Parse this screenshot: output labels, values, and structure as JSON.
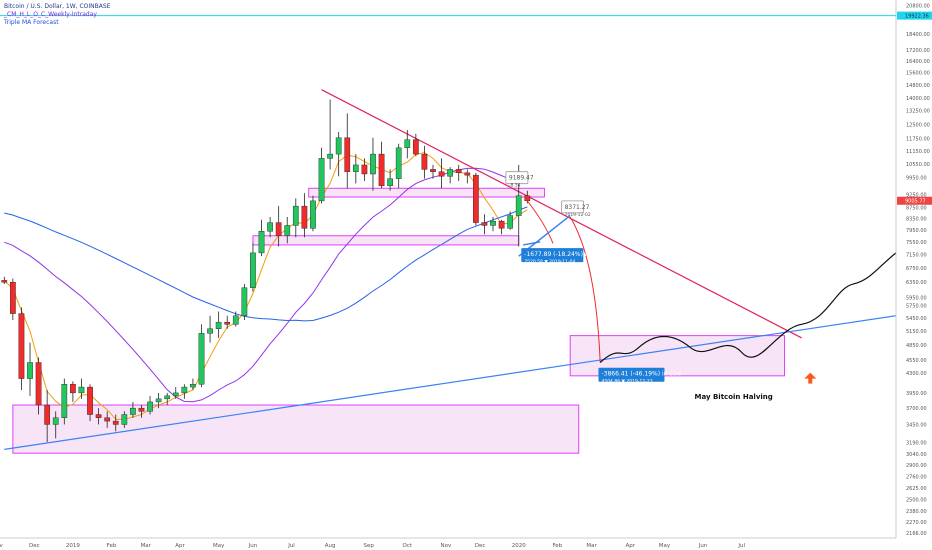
{
  "legend": {
    "symbol": "Bitcoin / U.S. Dollar, 1W, COINBASE",
    "indicator_1": "_CM_H_L_O_C_Weekly-Intraday",
    "indicator_2": "Triple MA Forecast"
  },
  "annotations": {
    "measure_1": "-1677.89 (-18.24%) in 7d",
    "measure_1_detail": "7520.58 ▼ 2019-11-04",
    "measure_2": "-3866.41 (-46.19%) in 21d",
    "measure_2_detail": "4504.86 ▼ 2019-12-23",
    "target_1": "8371.27",
    "target_1_detail": "2019-12-02",
    "current_label": "9189.47",
    "current_label_detail": "-8.34",
    "halving_note": "May Bitcoin Halving",
    "price_tag": "9005.77",
    "top_tag": "19922.36"
  },
  "colors": {
    "up": "#22c55e",
    "down": "#ef2b2b",
    "zone_stroke": "#e040fb",
    "zone_fill": "#f3d8f3",
    "trend_down": "#e0245e",
    "trend_up": "#3b82f6",
    "ma_fast": "#f59e0b",
    "ma_mid": "#9333ea",
    "ma_slow": "#2563eb",
    "top_line": "#22d3ee",
    "arrow": "#ff5722",
    "price_tag": "#ef4444",
    "measure_box": "#1d7fd8"
  },
  "chart_data": {
    "type": "candlestick",
    "y_axis_ticks": [
      20800,
      19900,
      18400,
      17200,
      16400,
      15600,
      14800,
      14000,
      13250,
      12500,
      11750,
      11150,
      10550,
      9950,
      9250,
      8750,
      8350,
      7950,
      7550,
      7150,
      6750,
      6350,
      5950,
      5750,
      5450,
      5150,
      4850,
      4550,
      4300,
      3950,
      3700,
      3450,
      3190,
      3040,
      2900,
      2760,
      2625,
      2500,
      2380,
      2270,
      2166
    ],
    "x_axis_ticks": [
      "Nov",
      "Dec",
      "2019",
      "Feb",
      "Mar",
      "Apr",
      "May",
      "Jun",
      "Jul",
      "Aug",
      "Sep",
      "Oct",
      "Nov",
      "Dec",
      "2020",
      "Feb",
      "Mar",
      "Apr",
      "May",
      "Jun",
      "Jul"
    ],
    "candles": [
      {
        "o": 6400,
        "h": 6500,
        "l": 6300,
        "c": 6350
      },
      {
        "o": 6350,
        "h": 6450,
        "l": 5400,
        "c": 5550
      },
      {
        "o": 5550,
        "h": 5700,
        "l": 4000,
        "c": 4200
      },
      {
        "o": 4200,
        "h": 4900,
        "l": 3900,
        "c": 4500
      },
      {
        "o": 4500,
        "h": 4600,
        "l": 3600,
        "c": 3750
      },
      {
        "o": 3750,
        "h": 4000,
        "l": 3200,
        "c": 3450
      },
      {
        "o": 3450,
        "h": 3650,
        "l": 3250,
        "c": 3550
      },
      {
        "o": 3550,
        "h": 4200,
        "l": 3450,
        "c": 4100
      },
      {
        "o": 4100,
        "h": 4150,
        "l": 3800,
        "c": 3950
      },
      {
        "o": 3950,
        "h": 4200,
        "l": 3850,
        "c": 4050
      },
      {
        "o": 4050,
        "h": 4100,
        "l": 3500,
        "c": 3600
      },
      {
        "o": 3600,
        "h": 3700,
        "l": 3450,
        "c": 3550
      },
      {
        "o": 3550,
        "h": 3650,
        "l": 3400,
        "c": 3500
      },
      {
        "o": 3500,
        "h": 3600,
        "l": 3350,
        "c": 3450
      },
      {
        "o": 3450,
        "h": 3650,
        "l": 3400,
        "c": 3600
      },
      {
        "o": 3600,
        "h": 3800,
        "l": 3550,
        "c": 3700
      },
      {
        "o": 3700,
        "h": 3750,
        "l": 3550,
        "c": 3650
      },
      {
        "o": 3650,
        "h": 3900,
        "l": 3600,
        "c": 3800
      },
      {
        "o": 3800,
        "h": 3950,
        "l": 3700,
        "c": 3850
      },
      {
        "o": 3850,
        "h": 3950,
        "l": 3750,
        "c": 3900
      },
      {
        "o": 3900,
        "h": 4050,
        "l": 3850,
        "c": 3950
      },
      {
        "o": 3950,
        "h": 4100,
        "l": 3850,
        "c": 4050
      },
      {
        "o": 4050,
        "h": 4200,
        "l": 4000,
        "c": 4100
      },
      {
        "o": 4100,
        "h": 5300,
        "l": 4050,
        "c": 5100
      },
      {
        "o": 5100,
        "h": 5500,
        "l": 4900,
        "c": 5200
      },
      {
        "o": 5200,
        "h": 5600,
        "l": 5000,
        "c": 5350
      },
      {
        "o": 5350,
        "h": 5500,
        "l": 5200,
        "c": 5300
      },
      {
        "o": 5300,
        "h": 5600,
        "l": 5250,
        "c": 5500
      },
      {
        "o": 5500,
        "h": 6300,
        "l": 5400,
        "c": 6200
      },
      {
        "o": 6200,
        "h": 7500,
        "l": 6100,
        "c": 7200
      },
      {
        "o": 7200,
        "h": 8300,
        "l": 7100,
        "c": 7900
      },
      {
        "o": 7900,
        "h": 8400,
        "l": 7700,
        "c": 8200
      },
      {
        "o": 8200,
        "h": 8800,
        "l": 7400,
        "c": 7750
      },
      {
        "o": 7750,
        "h": 8400,
        "l": 7500,
        "c": 8100
      },
      {
        "o": 8100,
        "h": 9100,
        "l": 7700,
        "c": 8800
      },
      {
        "o": 8800,
        "h": 9300,
        "l": 7700,
        "c": 8000
      },
      {
        "o": 8000,
        "h": 9200,
        "l": 7900,
        "c": 9000
      },
      {
        "o": 9000,
        "h": 11300,
        "l": 8900,
        "c": 10800
      },
      {
        "o": 10800,
        "h": 13900,
        "l": 10300,
        "c": 11000
      },
      {
        "o": 11000,
        "h": 12100,
        "l": 10000,
        "c": 11800
      },
      {
        "o": 11800,
        "h": 13100,
        "l": 9500,
        "c": 10200
      },
      {
        "o": 10200,
        "h": 11000,
        "l": 9700,
        "c": 10500
      },
      {
        "o": 10500,
        "h": 10800,
        "l": 9800,
        "c": 10100
      },
      {
        "o": 10100,
        "h": 11800,
        "l": 9400,
        "c": 11000
      },
      {
        "o": 11000,
        "h": 11600,
        "l": 9500,
        "c": 9600
      },
      {
        "o": 9600,
        "h": 10300,
        "l": 9400,
        "c": 9900
      },
      {
        "o": 9900,
        "h": 11500,
        "l": 9500,
        "c": 11300
      },
      {
        "o": 11300,
        "h": 12200,
        "l": 10800,
        "c": 11700
      },
      {
        "o": 11700,
        "h": 12000,
        "l": 10900,
        "c": 11000
      },
      {
        "o": 11000,
        "h": 11400,
        "l": 9900,
        "c": 10300
      },
      {
        "o": 10300,
        "h": 10500,
        "l": 9900,
        "c": 10200
      },
      {
        "o": 10200,
        "h": 10800,
        "l": 9500,
        "c": 10000
      },
      {
        "o": 10000,
        "h": 10400,
        "l": 9700,
        "c": 10300
      },
      {
        "o": 10300,
        "h": 10500,
        "l": 9800,
        "c": 10150
      },
      {
        "o": 10150,
        "h": 10300,
        "l": 9700,
        "c": 10050
      },
      {
        "o": 10050,
        "h": 10150,
        "l": 8100,
        "c": 8200
      },
      {
        "o": 8200,
        "h": 8500,
        "l": 7800,
        "c": 8100
      },
      {
        "o": 8100,
        "h": 8400,
        "l": 7900,
        "c": 8250
      },
      {
        "o": 8250,
        "h": 8300,
        "l": 7800,
        "c": 8000
      },
      {
        "o": 8000,
        "h": 8600,
        "l": 7950,
        "c": 8450
      },
      {
        "o": 8450,
        "h": 10500,
        "l": 7400,
        "c": 9200
      },
      {
        "o": 9200,
        "h": 9400,
        "l": 8900,
        "c": 9005
      }
    ],
    "zones": [
      {
        "label": "zone-top",
        "y_top": 9500,
        "y_bottom": 9150,
        "x_from": 35.5,
        "x_to": 63
      },
      {
        "label": "zone-mid",
        "y_top": 7750,
        "y_bottom": 7450,
        "x_from": 29,
        "x_to": 60
      },
      {
        "label": "zone-bottom",
        "y_top": 3750,
        "y_bottom": 3050,
        "x_from": 1,
        "x_to": 67
      },
      {
        "label": "zone-forecast",
        "y_top": 5050,
        "y_bottom": 4250,
        "x_from": 66,
        "x_to": 91
      }
    ],
    "trendlines": [
      {
        "name": "descending",
        "from": [
          37,
          14500
        ],
        "to": [
          93,
          5000
        ]
      },
      {
        "name": "ascending",
        "from": [
          0,
          3100
        ],
        "to": [
          104,
          5500
        ]
      }
    ],
    "ylim": [
      2120,
      21300
    ],
    "xlim": [
      -0.5,
      104
    ]
  }
}
